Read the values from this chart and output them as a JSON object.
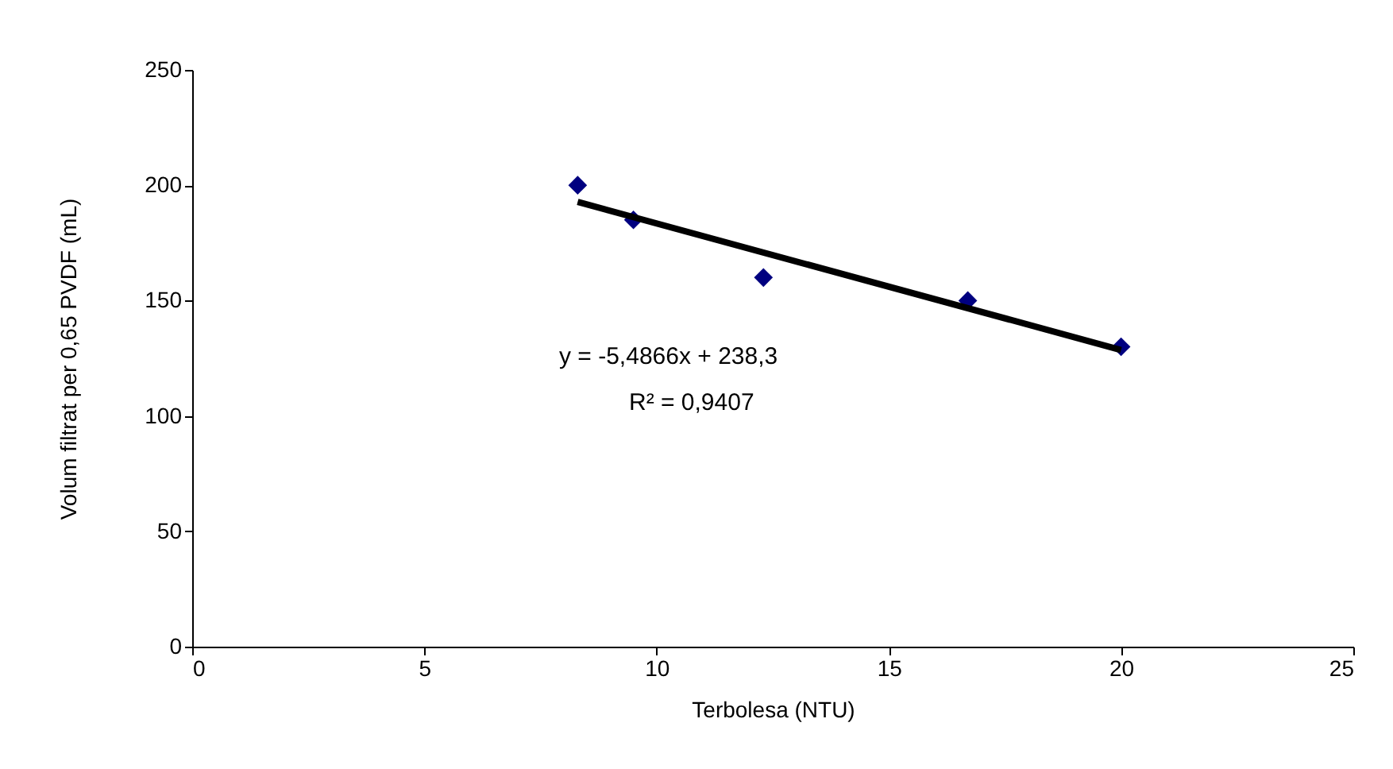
{
  "chart_data": {
    "type": "scatter",
    "xlabel": "Terbolesa (NTU)",
    "ylabel": "Volum filtrat per 0,65 PVDF (mL)",
    "x": [
      8.3,
      9.5,
      12.3,
      16.7,
      20
    ],
    "series": [
      {
        "color": "#000080",
        "values": [
          200,
          185,
          160,
          150,
          130
        ],
        "marker": "diamond"
      },
      {
        "type": "line",
        "color": "#000000",
        "x": [
          8.3,
          20
        ],
        "values": [
          192.8,
          128.6
        ],
        "line_style": "solid"
      }
    ],
    "xlim": [
      0,
      25
    ],
    "xticks": [
      0,
      5,
      10,
      15,
      20,
      25
    ],
    "ylim": [
      0,
      250
    ],
    "yticks": [
      0,
      50,
      100,
      150,
      200,
      250
    ],
    "grid": false,
    "annotations": [
      "y = -5,4866x + 238,3",
      "R² = 0,9407"
    ]
  }
}
